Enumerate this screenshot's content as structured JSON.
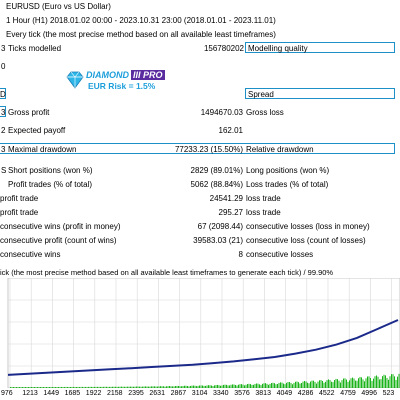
{
  "header": {
    "symbol": "EURUSD (Euro vs US Dollar)",
    "period": "1 Hour (H1) 2018.01.02 00:00 - 2023.10.31 23:00 (2018.01.01 - 2023.11.01)",
    "model": "Every tick (the most precise method based on all available least timeframes)"
  },
  "rows": {
    "ticks_label": "Ticks modelled",
    "ticks_value": "156780202",
    "modelling_quality": "Modelling quality",
    "spread": "Spread",
    "gross_profit_label": "Gross profit",
    "gross_profit_value": "1494670.03",
    "gross_loss": "Gross loss",
    "expected_payoff_label": "Expected payoff",
    "expected_payoff_value": "162.01",
    "max_dd_label": "Maximal drawdown",
    "max_dd_value": "77233.23 (15.50%)",
    "rel_dd": "Relative drawdown",
    "short_label": "Short positions (won %)",
    "short_value": "2829 (89.01%)",
    "long_label": "Long positions (won %)",
    "profit_trades_label": "Profit trades (% of total)",
    "profit_trades_value": "5062 (88.84%)",
    "loss_trades_label": "Loss trades (% of total)",
    "largest_profit_label": "profit trade",
    "largest_profit_value": "24541.29",
    "largest_loss_label": "loss trade",
    "avg_profit_label": "profit trade",
    "avg_profit_value": "295.27",
    "avg_loss_label": "loss trade",
    "max_cons_wins_label": "consecutive wins (profit in money)",
    "max_cons_wins_value": "67 (2098.44)",
    "max_cons_losses_label": "consecutive losses (loss in money)",
    "max_cons_profit_label": "consecutive profit (count of wins)",
    "max_cons_profit_value": "39583.03 (21)",
    "max_cons_loss_label": "consecutive loss (count of losses)",
    "avg_cons_wins_label": "consecutive wins",
    "avg_cons_wins_value": "8",
    "avg_cons_losses_label": "consecutive losses"
  },
  "row_prefix": {
    "ticks": "3",
    "gross": "3",
    "expected": "2",
    "maxdd": "3"
  },
  "logo": {
    "brand": "DIAMOND",
    "pro": "III PRO",
    "risk": "EUR Risk = 1.5%"
  },
  "chart_caption": "ick (the most precise method based on all available least timeframes to generate each tick) / 99.90%",
  "colors": {
    "border": "#1e90c8",
    "balance": "#1b2a8a",
    "volume": "#19b319",
    "logo": "#1e9fdb",
    "pro_bg": "#5a2ca0"
  },
  "chart_data": {
    "type": "line",
    "title": "",
    "x_ticks": [
      "976",
      "1213",
      "1449",
      "1685",
      "1922",
      "2158",
      "2395",
      "2631",
      "2867",
      "3104",
      "3340",
      "3576",
      "3813",
      "4049",
      "4286",
      "4522",
      "4759",
      "4996",
      "523"
    ],
    "series": [
      {
        "values": [
          0.02,
          0.04,
          0.06,
          0.08,
          0.1,
          0.12,
          0.14,
          0.16,
          0.18,
          0.2,
          0.23,
          0.26,
          0.3,
          0.34,
          0.4,
          0.47,
          0.56,
          0.68,
          0.84,
          1.0
        ]
      }
    ],
    "grid": true
  }
}
